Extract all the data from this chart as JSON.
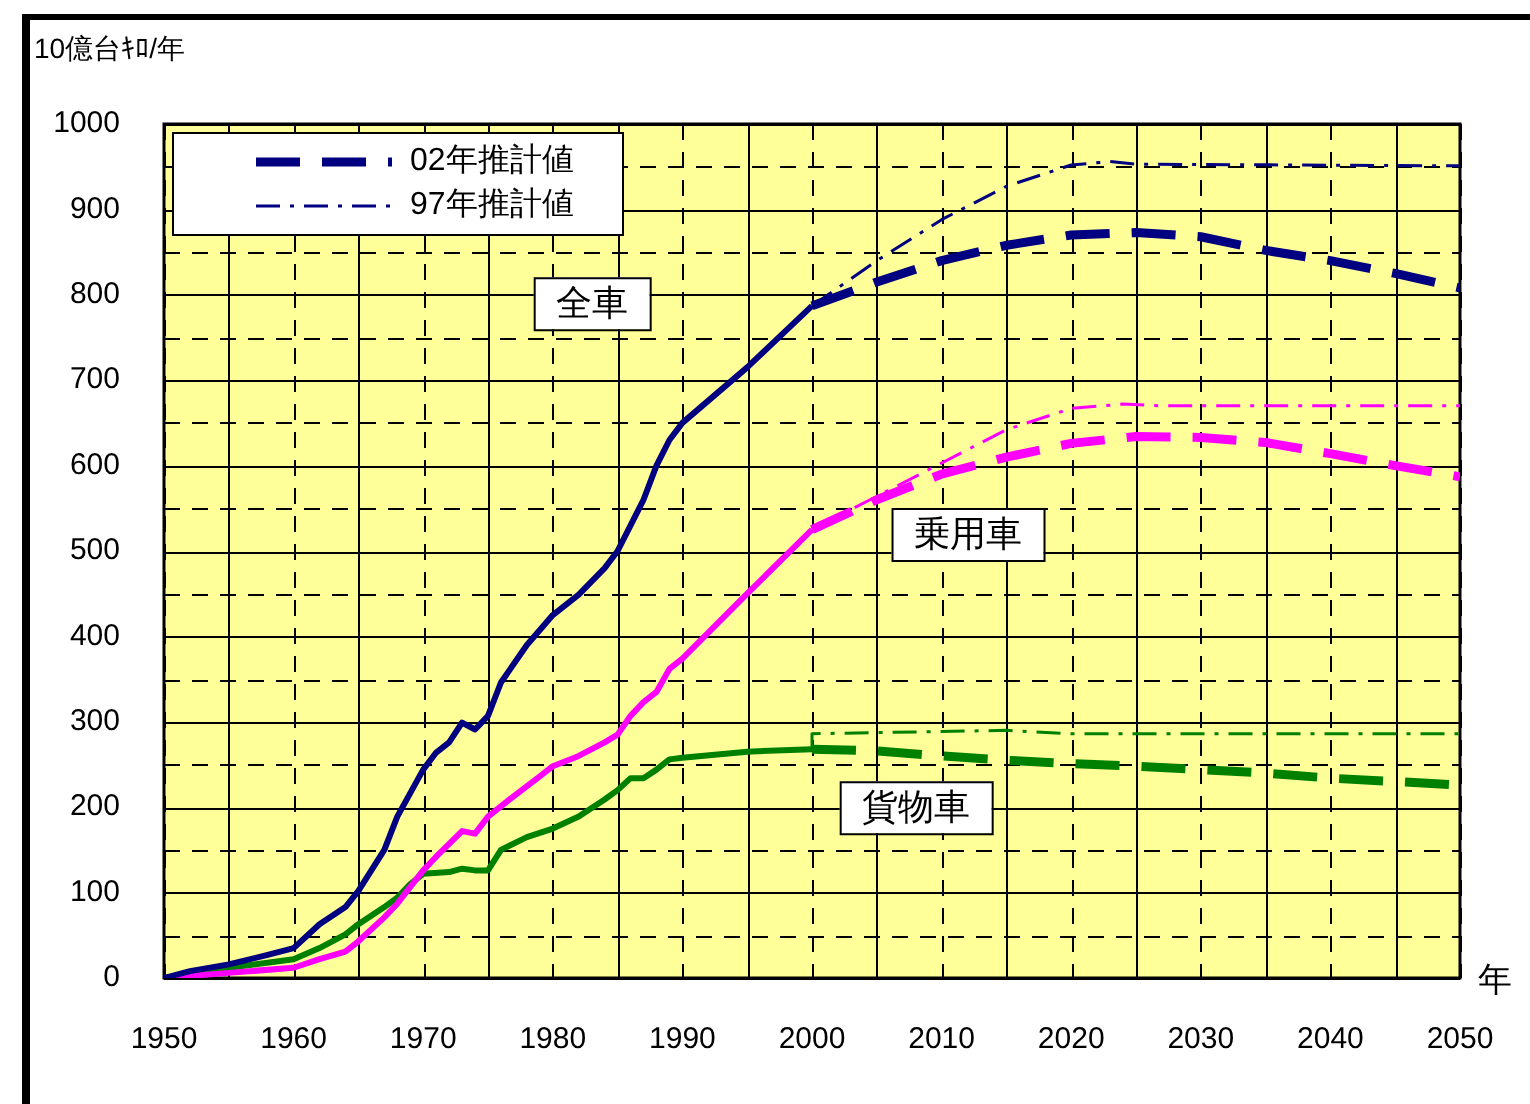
{
  "chart_data": {
    "type": "line",
    "xlabel": "年",
    "ylabel": "10億台ｷﾛ/年",
    "xlim": [
      1950,
      2050
    ],
    "xticks": [
      1950,
      {
        "value": 1955,
        "label": null
      },
      1960,
      {
        "value": 1965,
        "label": null
      },
      1970,
      {
        "value": 1975,
        "label": null
      },
      1980,
      {
        "value": 1985,
        "label": null
      },
      1990,
      {
        "value": 1995,
        "label": null
      },
      2000,
      {
        "value": 2005,
        "label": null
      },
      2010,
      {
        "value": 2015,
        "label": null
      },
      2020,
      {
        "value": 2025,
        "label": null
      },
      2030,
      {
        "value": 2035,
        "label": null
      },
      2040,
      {
        "value": 2045,
        "label": null
      },
      2050
    ],
    "ylim": [
      0,
      1000
    ],
    "yticks": [
      0,
      {
        "value": 50,
        "label": null
      },
      100,
      {
        "value": 150,
        "label": null
      },
      200,
      {
        "value": 250,
        "label": null
      },
      300,
      {
        "value": 350,
        "label": null
      },
      400,
      {
        "value": 450,
        "label": null
      },
      500,
      {
        "value": 550,
        "label": null
      },
      600,
      {
        "value": 650,
        "label": null
      },
      700,
      {
        "value": 750,
        "label": null
      },
      800,
      {
        "value": 850,
        "label": null
      },
      900,
      {
        "value": 950,
        "label": null
      },
      1000
    ],
    "grid": true,
    "legend": "top left",
    "series": [
      {
        "color": "#000080",
        "line_style": "solid",
        "x": [
          1950,
          1952,
          1955,
          1958,
          1960,
          1962,
          1964,
          1965,
          1967,
          1968,
          1970,
          1971,
          1972,
          1973,
          1974,
          1975,
          1976,
          1978,
          1980,
          1982,
          1984,
          1985,
          1986,
          1987,
          1988,
          1989,
          1990,
          1995,
          2000
        ],
        "values": [
          0,
          8,
          16,
          27,
          35,
          63,
          83,
          102,
          150,
          189,
          244,
          264,
          276,
          299,
          291,
          307,
          346,
          390,
          425,
          449,
          480,
          500,
          530,
          560,
          600,
          630,
          650,
          715,
          787
        ]
      },
      {
        "name": "02年推計値",
        "color": "#000080",
        "line_style": "dashed",
        "x": [
          2000,
          2005,
          2010,
          2015,
          2020,
          2025,
          2030,
          2035,
          2040,
          2045,
          2050
        ],
        "values": [
          787,
          815,
          840,
          858,
          870,
          873,
          868,
          852,
          840,
          825,
          808
        ]
      },
      {
        "name": "97年推計値",
        "color": "#000080",
        "line_style": "dashdot",
        "x": [
          2000,
          2005,
          2010,
          2015,
          2020,
          2023,
          2025,
          2050
        ],
        "values": [
          787,
          840,
          888,
          927,
          952,
          956,
          953,
          951
        ]
      },
      {
        "color": "#ff00ff",
        "line_style": "solid",
        "x": [
          1950,
          1955,
          1960,
          1962,
          1964,
          1965,
          1967,
          1968,
          1970,
          1971,
          1972,
          1973,
          1974,
          1975,
          1977,
          1979,
          1980,
          1982,
          1984,
          1985,
          1986,
          1987,
          1988,
          1989,
          1990,
          1995,
          2000
        ],
        "values": [
          0,
          6,
          12,
          22,
          31,
          43,
          71,
          87,
          126,
          142,
          157,
          172,
          169,
          189,
          213,
          236,
          248,
          260,
          276,
          285,
          307,
          323,
          335,
          362,
          374,
          450,
          525
        ]
      },
      {
        "color": "#ff00ff",
        "line_style": "dashed",
        "x": [
          2000,
          2005,
          2010,
          2015,
          2020,
          2025,
          2030,
          2035,
          2040,
          2045,
          2050
        ],
        "values": [
          525,
          560,
          590,
          610,
          626,
          634,
          633,
          627,
          614,
          600,
          587
        ]
      },
      {
        "color": "#ff00ff",
        "line_style": "dashdot",
        "x": [
          2000,
          2005,
          2010,
          2015,
          2020,
          2024,
          2027,
          2050
        ],
        "values": [
          525,
          564,
          603,
          642,
          667,
          672,
          670,
          670
        ]
      },
      {
        "color": "#008000",
        "line_style": "solid",
        "x": [
          1950,
          1955,
          1960,
          1962,
          1964,
          1965,
          1967,
          1968,
          1969,
          1970,
          1972,
          1973,
          1974,
          1975,
          1976,
          1978,
          1980,
          1982,
          1984,
          1985,
          1986,
          1987,
          1988,
          1989,
          1990,
          1995,
          2000
        ],
        "values": [
          0,
          12,
          22,
          35,
          51,
          63,
          83,
          94,
          110,
          122,
          124,
          128,
          126,
          126,
          150,
          165,
          175,
          189,
          209,
          220,
          234,
          234,
          244,
          256,
          258,
          265,
          268
        ]
      },
      {
        "color": "#008000",
        "line_style": "dashed",
        "x": [
          2000,
          2005,
          2010,
          2015,
          2020,
          2025,
          2030,
          2035,
          2040,
          2045,
          2050
        ],
        "values": [
          268,
          266,
          260,
          255,
          251,
          248,
          244,
          240,
          234,
          230,
          226
        ]
      },
      {
        "color": "#008000",
        "line_style": "dashdot",
        "x": [
          2000,
          2000,
          2015,
          2020,
          2050
        ],
        "values": [
          268,
          286,
          290,
          286,
          286
        ]
      }
    ],
    "annotations": [
      "全車",
      "乗用車",
      "貨物車"
    ]
  }
}
